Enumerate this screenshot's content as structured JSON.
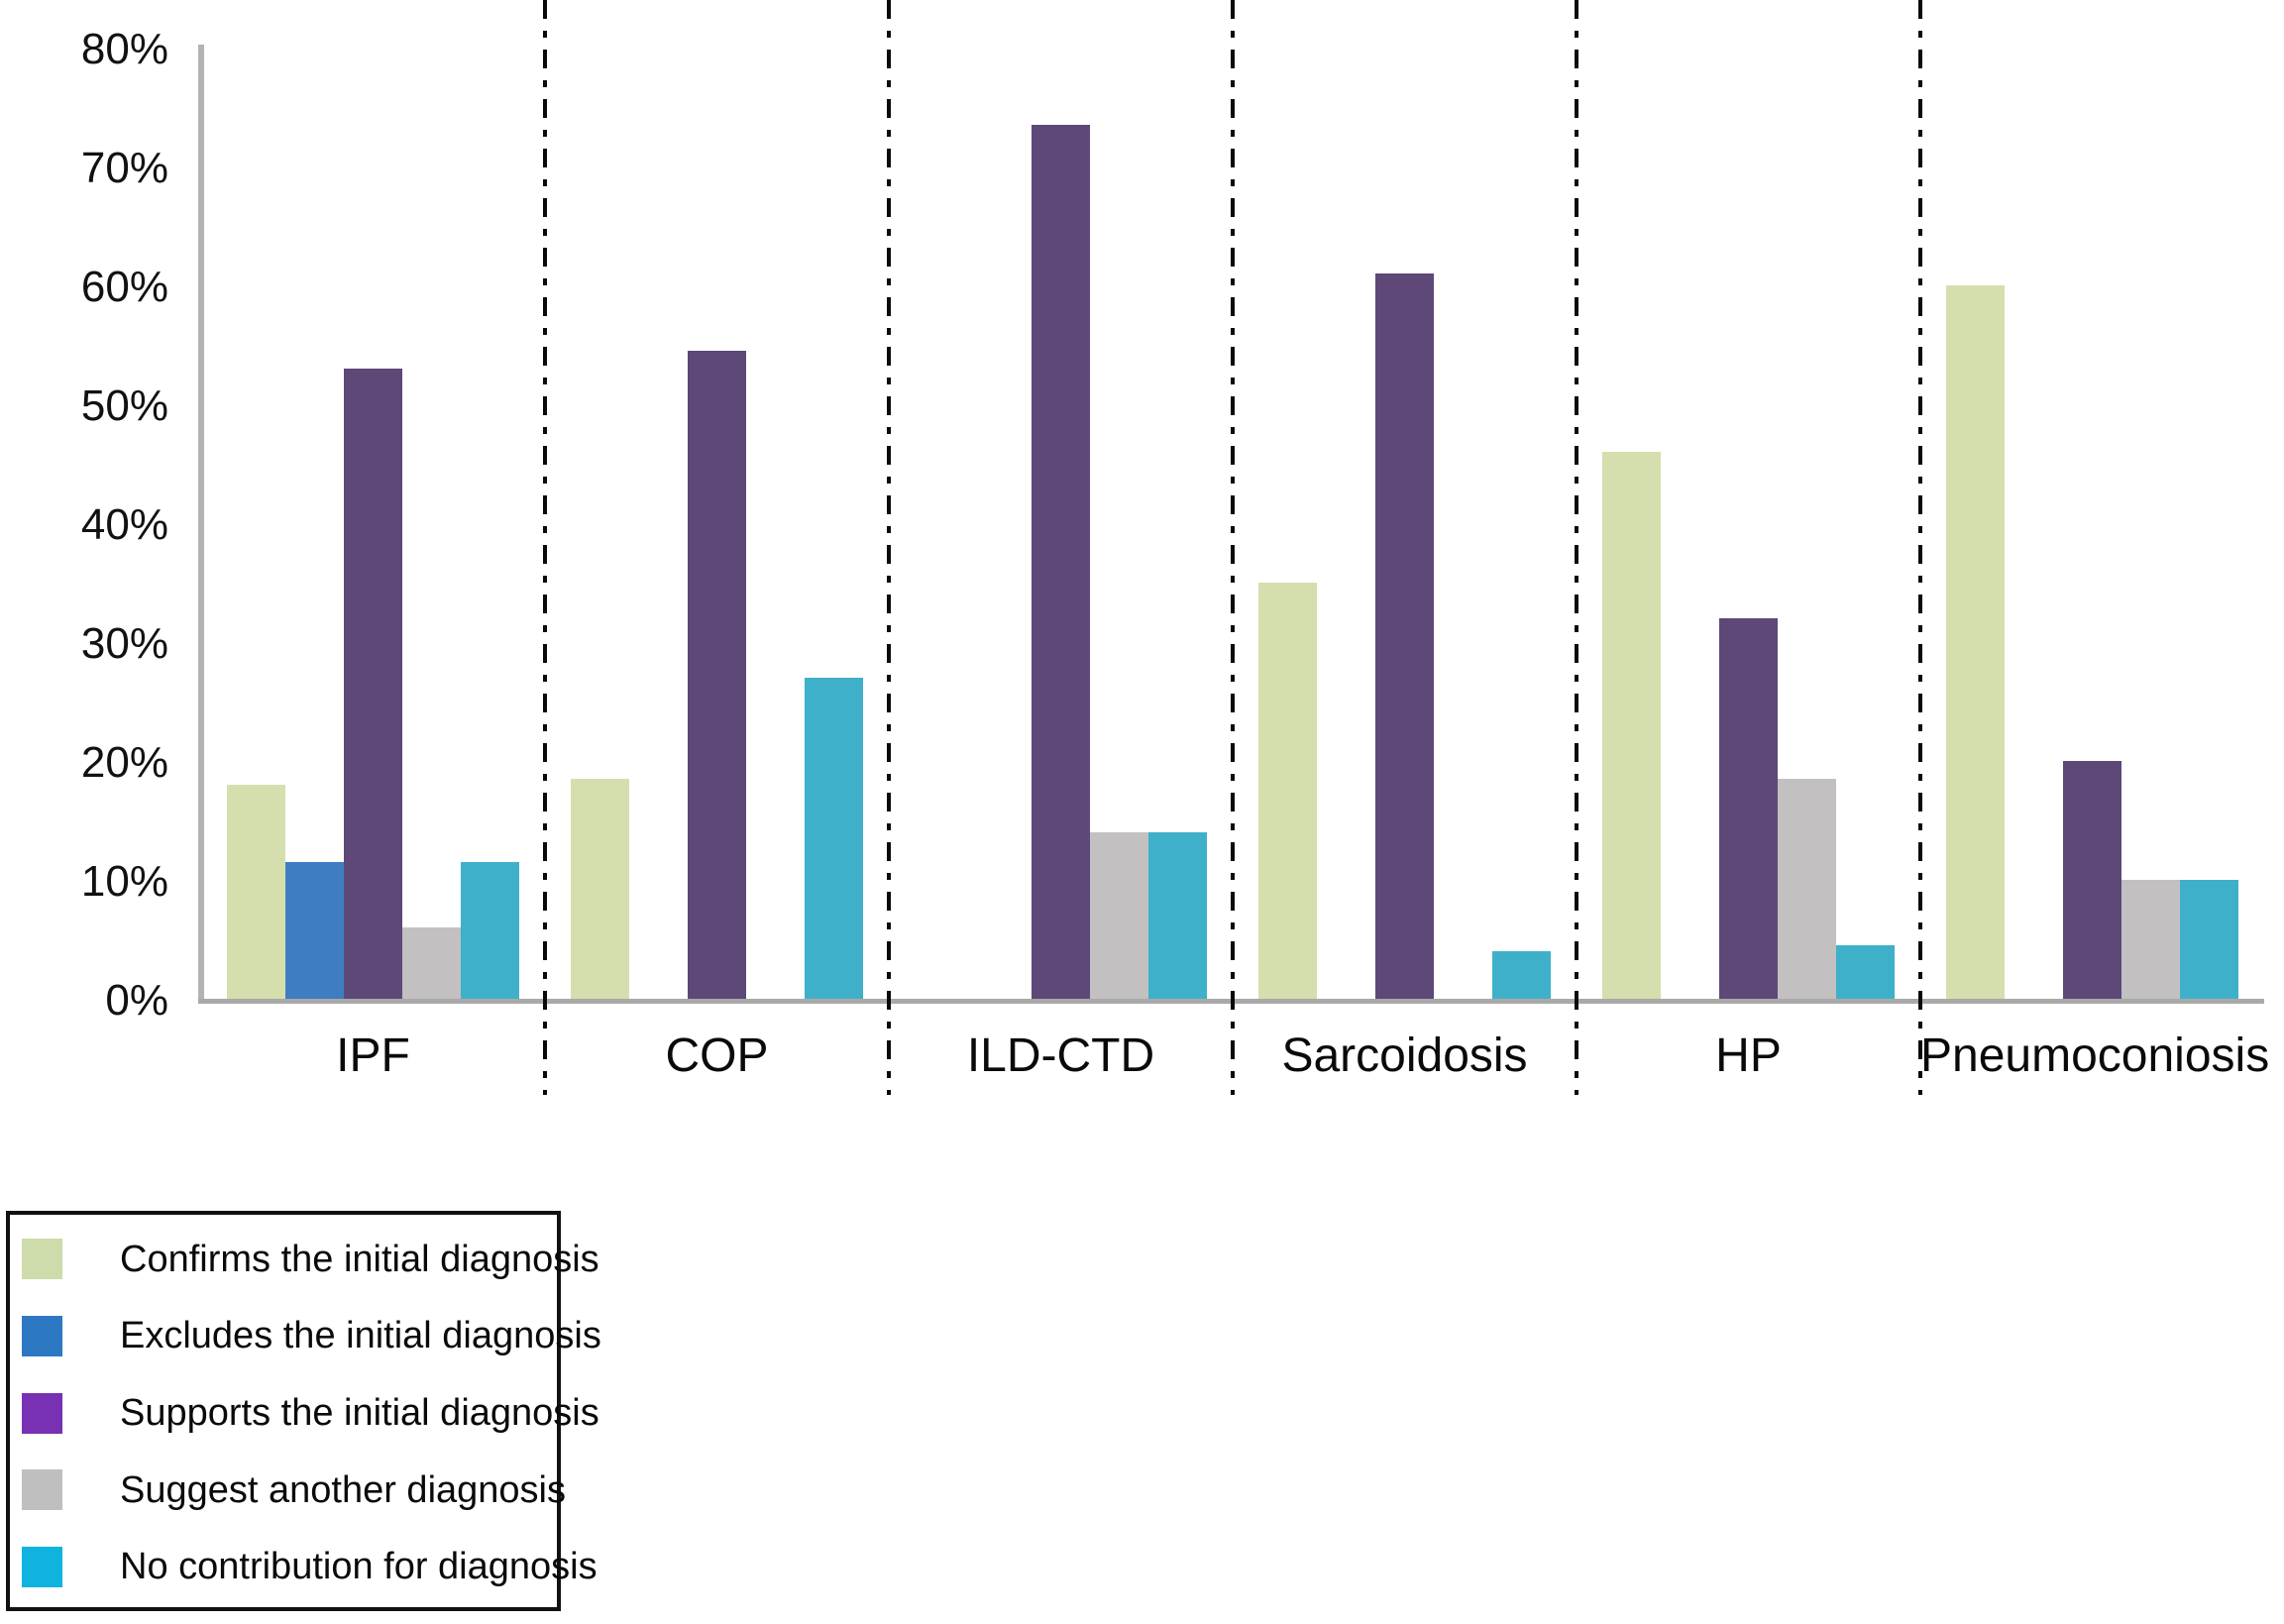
{
  "chart_data": {
    "type": "bar",
    "title": "",
    "xlabel": "",
    "ylabel": "",
    "categories": [
      "IPF",
      "COP",
      "ILD-CTD",
      "Sarcoidosis",
      "HP",
      "Pneumoconiosis"
    ],
    "series": [
      {
        "key": "confirms",
        "name": "Confirms the initial diagnosis",
        "bar_color": "#d5dfae",
        "swatch_color": "#cedbab",
        "values": [
          18,
          18.5,
          0,
          35,
          46,
          60
        ]
      },
      {
        "key": "excludes",
        "name": "Excludes the initial diagnosis",
        "bar_color": "#3e7dc1",
        "swatch_color": "#2d78c3",
        "values": [
          11.5,
          0,
          0,
          0,
          0,
          0
        ]
      },
      {
        "key": "supports",
        "name": "Supports the initial diagnosis",
        "bar_color": "#5d4878",
        "swatch_color": "#7731b2",
        "values": [
          53,
          54.5,
          73.5,
          61,
          32,
          20
        ]
      },
      {
        "key": "suggest",
        "name": "Suggest another diagnosis",
        "bar_color": "#c2c0c1",
        "swatch_color": "#bfbfbf",
        "values": [
          6,
          0,
          14,
          0,
          18.5,
          10
        ]
      },
      {
        "key": "no-contribution",
        "name": "No contribution for diagnosis",
        "bar_color": "#3fb0c9",
        "swatch_color": "#0fb3dd",
        "values": [
          11.5,
          27,
          14,
          4,
          4.5,
          10
        ]
      }
    ],
    "y_axis": {
      "min": 0,
      "max": 80,
      "step": 10,
      "tick_labels": [
        "0%",
        "10%",
        "20%",
        "30%",
        "40%",
        "50%",
        "60%",
        "70%",
        "80%"
      ]
    },
    "grid": false,
    "legend_position": "bottom-left",
    "layout_hints": {
      "separator_style": "vertical dash-dot lines between categories",
      "axis_color": "#b3b3b3"
    }
  }
}
